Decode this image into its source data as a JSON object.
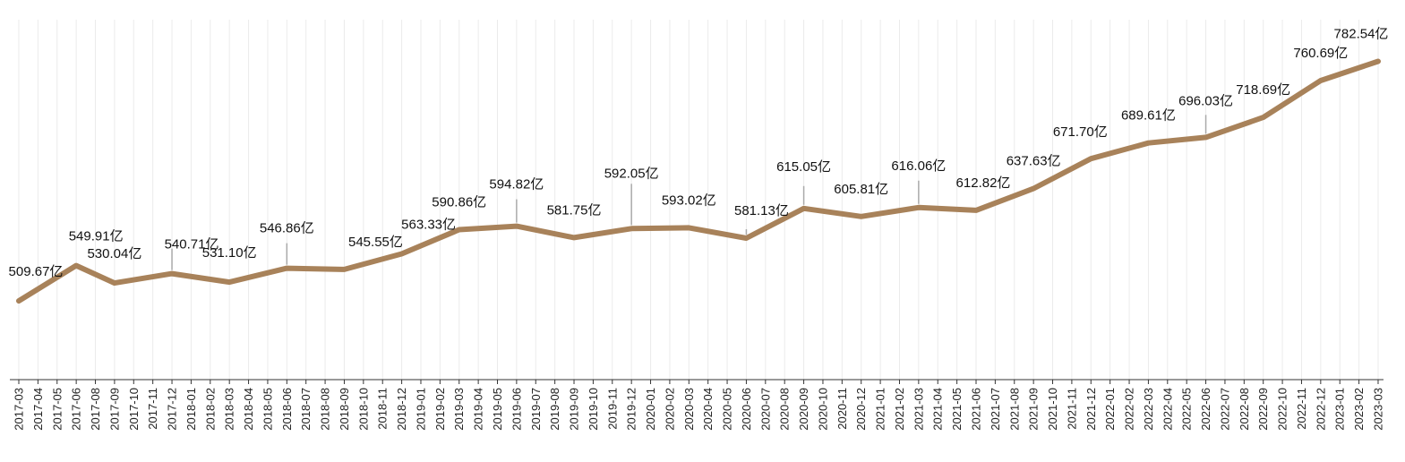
{
  "chart_data": {
    "type": "line",
    "title": "",
    "xlabel": "",
    "ylabel": "",
    "unit_suffix": "亿",
    "line_color": "#a8825a",
    "grid": true,
    "ylim": [
      420,
      830
    ],
    "categories": [
      "2017-03",
      "2017-04",
      "2017-05",
      "2017-06",
      "2017-08",
      "2017-09",
      "2017-10",
      "2017-11",
      "2017-12",
      "2018-01",
      "2018-02",
      "2018-03",
      "2018-04",
      "2018-05",
      "2018-06",
      "2018-07",
      "2018-08",
      "2018-09",
      "2018-10",
      "2018-11",
      "2018-12",
      "2019-01",
      "2019-02",
      "2019-03",
      "2019-04",
      "2019-05",
      "2019-06",
      "2019-07",
      "2019-08",
      "2019-09",
      "2019-10",
      "2019-11",
      "2019-12",
      "2020-01",
      "2020-02",
      "2020-03",
      "2020-04",
      "2020-05",
      "2020-06",
      "2020-07",
      "2020-08",
      "2020-09",
      "2020-10",
      "2020-11",
      "2020-12",
      "2021-01",
      "2021-02",
      "2021-03",
      "2021-04",
      "2021-05",
      "2021-06",
      "2021-07",
      "2021-08",
      "2021-09",
      "2021-10",
      "2021-11",
      "2021-12",
      "2022-01",
      "2022-02",
      "2022-03",
      "2022-04",
      "2022-05",
      "2022-06",
      "2022-07",
      "2022-08",
      "2022-09",
      "2022-10",
      "2022-11",
      "2022-12",
      "2023-01",
      "2023-02",
      "2023-03"
    ],
    "series": [
      {
        "points": [
          {
            "x": "2017-03",
            "y": 509.67,
            "label": "509.67亿"
          },
          {
            "x": "2017-06",
            "y": 549.91,
            "label": "549.91亿"
          },
          {
            "x": "2017-09",
            "y": 530.04,
            "label": "530.04亿"
          },
          {
            "x": "2017-12",
            "y": 540.71,
            "label": "540.71亿"
          },
          {
            "x": "2018-03",
            "y": 531.1,
            "label": "531.10亿"
          },
          {
            "x": "2018-06",
            "y": 546.86,
            "label": "546.86亿"
          },
          {
            "x": "2018-09",
            "y": 545.55,
            "label": "545.55亿"
          },
          {
            "x": "2018-12",
            "y": 563.33,
            "label": "563.33亿"
          },
          {
            "x": "2019-03",
            "y": 590.86,
            "label": "590.86亿"
          },
          {
            "x": "2019-06",
            "y": 594.82,
            "label": "594.82亿"
          },
          {
            "x": "2019-09",
            "y": 581.75,
            "label": "581.75亿"
          },
          {
            "x": "2019-12",
            "y": 592.05,
            "label": "592.05亿"
          },
          {
            "x": "2020-03",
            "y": 593.02,
            "label": "593.02亿"
          },
          {
            "x": "2020-06",
            "y": 581.13,
            "label": "581.13亿"
          },
          {
            "x": "2020-09",
            "y": 615.05,
            "label": "615.05亿"
          },
          {
            "x": "2020-12",
            "y": 605.81,
            "label": "605.81亿"
          },
          {
            "x": "2021-03",
            "y": 616.06,
            "label": "616.06亿"
          },
          {
            "x": "2021-06",
            "y": 612.82,
            "label": "612.82亿"
          },
          {
            "x": "2021-09",
            "y": 637.63,
            "label": "637.63亿"
          },
          {
            "x": "2021-12",
            "y": 671.7,
            "label": "671.70亿"
          },
          {
            "x": "2022-03",
            "y": 689.61,
            "label": "689.61亿"
          },
          {
            "x": "2022-06",
            "y": 696.03,
            "label": "696.03亿"
          },
          {
            "x": "2022-09",
            "y": 718.69,
            "label": "718.69亿"
          },
          {
            "x": "2022-12",
            "y": 760.69,
            "label": "760.69亿"
          },
          {
            "x": "2023-03",
            "y": 782.54,
            "label": "782.54亿"
          }
        ]
      }
    ]
  }
}
